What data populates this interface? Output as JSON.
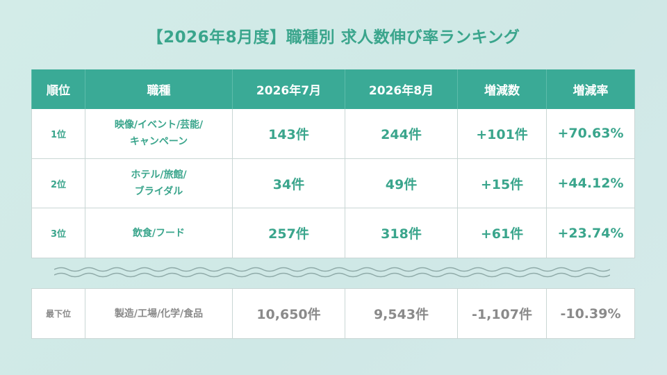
{
  "header": {
    "title": "【2026年8月度】職種別 求人数伸び率ランキング"
  },
  "table": {
    "columns": [
      "順位",
      "職種",
      "2026年7月",
      "2026年8月",
      "増減数",
      "増減率"
    ],
    "rows": [
      [
        "1位",
        [
          "映像/イベント/芸能/",
          "キャンペーン"
        ],
        "143件",
        "244件",
        "+101件",
        "+70.63%"
      ],
      [
        "2位",
        [
          "ホテル/旅館/",
          "ブライダル"
        ],
        "34件",
        "49件",
        "+15件",
        "+44.12%"
      ],
      [
        "3位",
        [
          "飲食/フード"
        ],
        "257件",
        "318件",
        "+61件",
        "+23.74%"
      ]
    ]
  },
  "bottom": {
    "row": [
      "最下位",
      [
        "製造/工場/化学/食品"
      ],
      "10,650件",
      "9,543件",
      "-1,107件",
      "-10.39%"
    ]
  }
}
